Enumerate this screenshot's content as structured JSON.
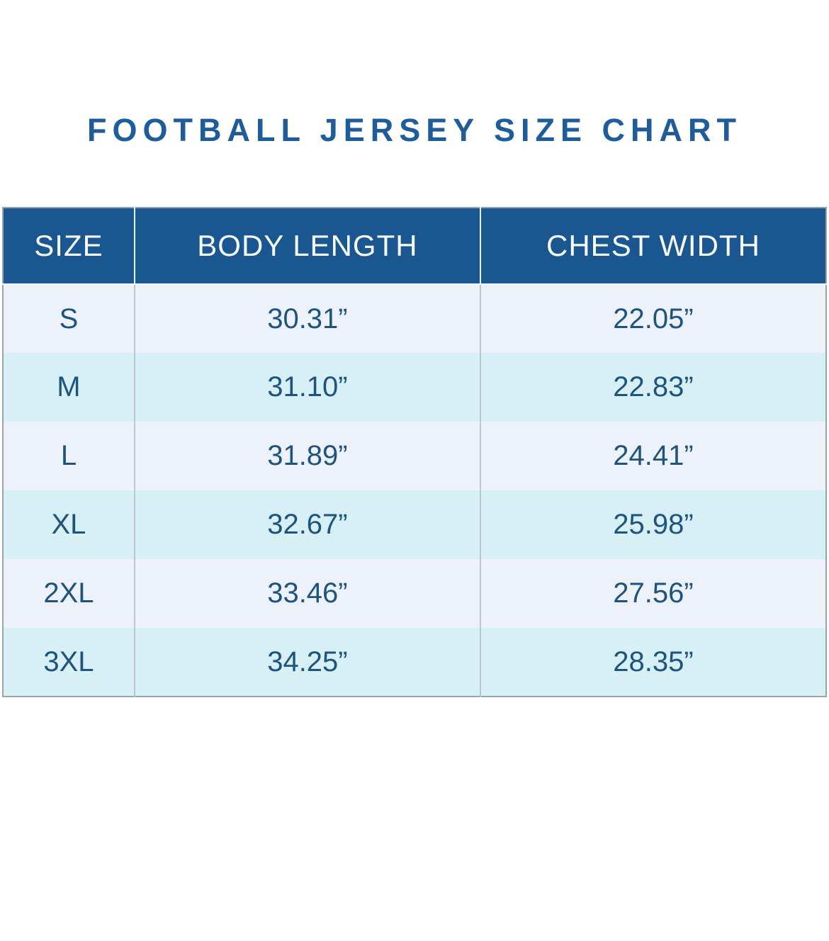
{
  "title": "FOOTBALL JERSEY SIZE CHART",
  "theme": {
    "title_color": "#1e5c9c",
    "header_bg": "#1a5791",
    "header_text": "#f7fbfe",
    "row_odd_bg": "#edf2fa",
    "row_even_bg": "#d6f0f6",
    "cell_text": "#1d537f",
    "outer_border": "#9ba2a8",
    "col_divider": "#bcc6cd",
    "page_bg": "#ffffff"
  },
  "chart_data": {
    "type": "table",
    "title": "FOOTBALL JERSEY SIZE CHART",
    "headers": [
      "SIZE",
      "BODY LENGTH",
      "CHEST WIDTH"
    ],
    "rows": [
      {
        "size": "S",
        "body_length": "30.31”",
        "chest_width": "22.05”"
      },
      {
        "size": "M",
        "body_length": "31.10”",
        "chest_width": "22.83”"
      },
      {
        "size": "L",
        "body_length": "31.89”",
        "chest_width": "24.41”"
      },
      {
        "size": "XL",
        "body_length": "32.67”",
        "chest_width": "25.98”"
      },
      {
        "size": "2XL",
        "body_length": "33.46”",
        "chest_width": "27.56”"
      },
      {
        "size": "3XL",
        "body_length": "34.25”",
        "chest_width": "28.35”"
      }
    ]
  }
}
